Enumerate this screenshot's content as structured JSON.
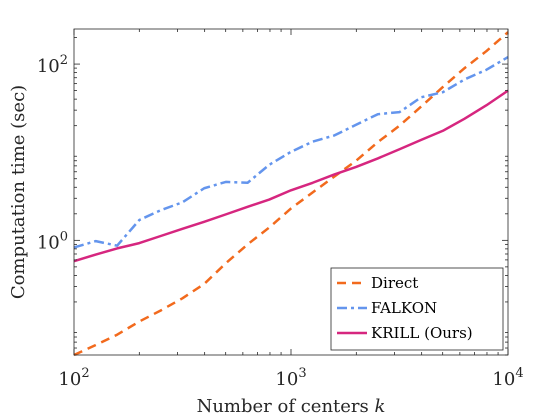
{
  "chart_data": {
    "type": "line",
    "xscale": "log",
    "yscale": "log",
    "xlim": [
      100,
      10000
    ],
    "ylim": [
      0.05,
      250
    ],
    "xlabel": "Number of centers k",
    "ylabel": "Computation time (sec)",
    "x_ticks": [
      {
        "value": 100,
        "base": "10",
        "exp": "2"
      },
      {
        "value": 1000,
        "base": "10",
        "exp": "3"
      },
      {
        "value": 10000,
        "base": "10",
        "exp": "4"
      }
    ],
    "y_ticks": [
      {
        "value": 1,
        "base": "10",
        "exp": "0"
      },
      {
        "value": 100,
        "base": "10",
        "exp": "2"
      }
    ],
    "grid": false,
    "legend_position": "bottom-right",
    "series": [
      {
        "name": "Direct",
        "color": "#F26A1D",
        "style": "dashed",
        "x": [
          100,
          126,
          158,
          200,
          251,
          316,
          398,
          501,
          631,
          794,
          1000,
          1259,
          1585,
          1995,
          2512,
          3162,
          3981,
          5012,
          6310,
          7943,
          10000
        ],
        "y": [
          0.05,
          0.065,
          0.085,
          0.12,
          0.16,
          0.22,
          0.32,
          0.55,
          0.9,
          1.4,
          2.3,
          3.5,
          5.3,
          8.0,
          13.0,
          20.0,
          33.0,
          55.0,
          90.0,
          140.0,
          230.0
        ]
      },
      {
        "name": "FALKON",
        "color": "#6495ED",
        "style": "dashdot",
        "x": [
          100,
          126,
          158,
          200,
          251,
          316,
          398,
          501,
          631,
          794,
          1000,
          1259,
          1585,
          1995,
          2512,
          3162,
          3981,
          5012,
          6310,
          7943,
          10000
        ],
        "y": [
          0.83,
          0.98,
          0.87,
          1.7,
          2.2,
          2.7,
          3.9,
          4.6,
          4.5,
          7.2,
          10.1,
          13.2,
          15.5,
          20.5,
          27.0,
          28.5,
          42.0,
          48.0,
          67.0,
          86.0,
          120.0
        ]
      },
      {
        "name": "KRILL (Ours)",
        "color": "#D6267F",
        "style": "solid",
        "x": [
          100,
          126,
          158,
          200,
          251,
          316,
          398,
          501,
          631,
          794,
          1000,
          1259,
          1585,
          1995,
          2512,
          3162,
          3981,
          5012,
          6310,
          7943,
          10000
        ],
        "y": [
          0.58,
          0.69,
          0.81,
          0.93,
          1.12,
          1.35,
          1.62,
          1.97,
          2.4,
          2.9,
          3.7,
          4.5,
          5.6,
          6.8,
          8.5,
          10.8,
          13.8,
          17.5,
          24.0,
          34.0,
          50.0
        ]
      }
    ]
  }
}
